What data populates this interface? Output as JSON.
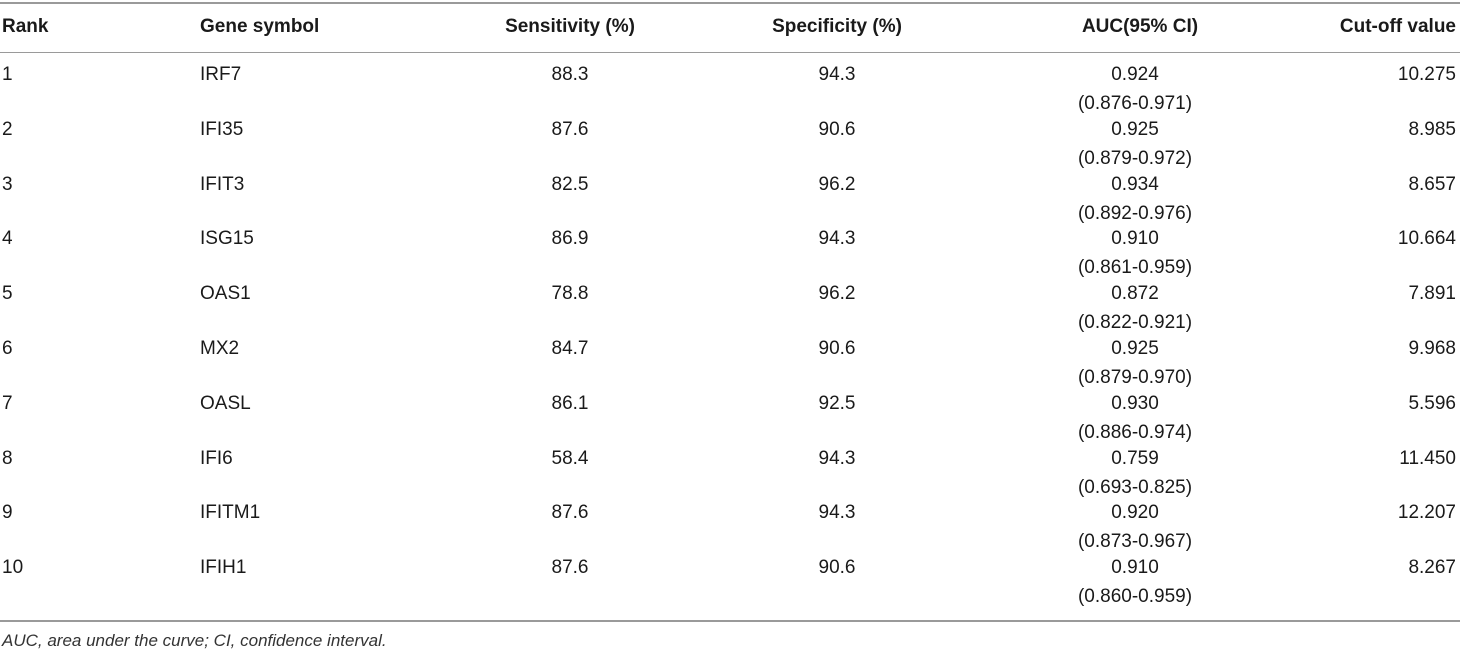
{
  "table": {
    "headers": {
      "rank": "Rank",
      "gene": "Gene symbol",
      "sensitivity": "Sensitivity (%)",
      "specificity": "Specificity (%)",
      "auc": "AUC(95% CI)",
      "cutoff": "Cut-off value"
    },
    "rows": [
      {
        "rank": "1",
        "gene": "IRF7",
        "sensitivity": "88.3",
        "specificity": "94.3",
        "auc": "0.924",
        "ci": "(0.876-0.971)",
        "cutoff": "10.275"
      },
      {
        "rank": "2",
        "gene": "IFI35",
        "sensitivity": "87.6",
        "specificity": "90.6",
        "auc": "0.925",
        "ci": "(0.879-0.972)",
        "cutoff": "8.985"
      },
      {
        "rank": "3",
        "gene": "IFIT3",
        "sensitivity": "82.5",
        "specificity": "96.2",
        "auc": "0.934",
        "ci": "(0.892-0.976)",
        "cutoff": "8.657"
      },
      {
        "rank": "4",
        "gene": "ISG15",
        "sensitivity": "86.9",
        "specificity": "94.3",
        "auc": "0.910",
        "ci": "(0.861-0.959)",
        "cutoff": "10.664"
      },
      {
        "rank": "5",
        "gene": "OAS1",
        "sensitivity": "78.8",
        "specificity": "96.2",
        "auc": "0.872",
        "ci": "(0.822-0.921)",
        "cutoff": "7.891"
      },
      {
        "rank": "6",
        "gene": "MX2",
        "sensitivity": "84.7",
        "specificity": "90.6",
        "auc": "0.925",
        "ci": "(0.879-0.970)",
        "cutoff": "9.968"
      },
      {
        "rank": "7",
        "gene": "OASL",
        "sensitivity": "86.1",
        "specificity": "92.5",
        "auc": "0.930",
        "ci": "(0.886-0.974)",
        "cutoff": "5.596"
      },
      {
        "rank": "8",
        "gene": "IFI6",
        "sensitivity": "58.4",
        "specificity": "94.3",
        "auc": "0.759",
        "ci": "(0.693-0.825)",
        "cutoff": "11.450"
      },
      {
        "rank": "9",
        "gene": "IFITM1",
        "sensitivity": "87.6",
        "specificity": "94.3",
        "auc": "0.920",
        "ci": "(0.873-0.967)",
        "cutoff": "12.207"
      },
      {
        "rank": "10",
        "gene": "IFIH1",
        "sensitivity": "87.6",
        "specificity": "90.6",
        "auc": "0.910",
        "ci": "(0.860-0.959)",
        "cutoff": "8.267"
      }
    ],
    "footnote": "AUC, area under the curve; CI, confidence interval."
  }
}
